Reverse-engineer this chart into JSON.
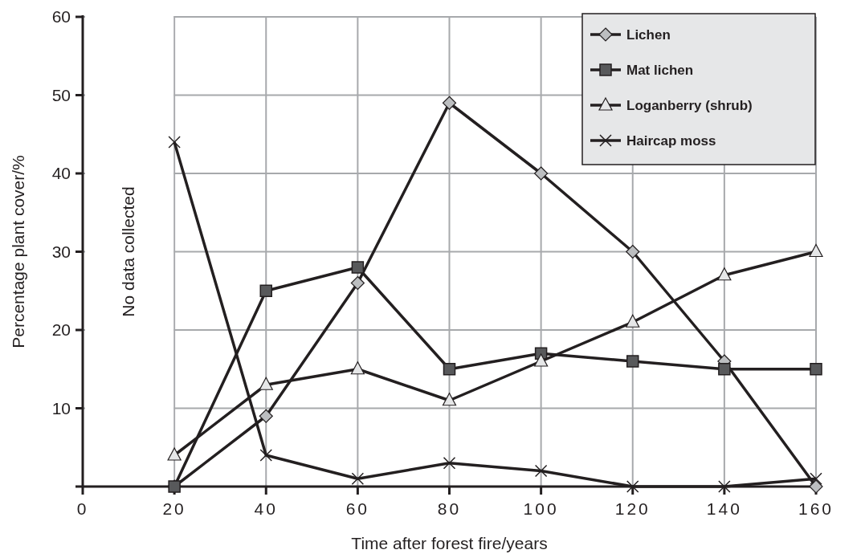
{
  "chart_data": {
    "type": "line",
    "xlabel": "Time after forest fire/years",
    "ylabel": "Percentage plant cover/%",
    "x": [
      20,
      40,
      60,
      80,
      100,
      120,
      140,
      160
    ],
    "series": [
      {
        "name": "Lichen",
        "color": "#bcbec0",
        "marker": "diamond",
        "values": [
          0,
          9,
          26,
          49,
          40,
          30,
          16,
          0
        ]
      },
      {
        "name": "Mat lichen",
        "color": "#58595b",
        "marker": "square",
        "values": [
          0,
          25,
          28,
          15,
          17,
          16,
          15,
          15
        ]
      },
      {
        "name": "Loganberry (shrub)",
        "color": "#e6e7e8",
        "marker": "triangle",
        "values": [
          4,
          13,
          15,
          11,
          16,
          21,
          27,
          30
        ]
      },
      {
        "name": "Haircap moss",
        "color": "#231f20",
        "marker": "cross",
        "values": [
          44,
          4,
          1,
          3,
          2,
          0,
          0,
          1
        ]
      }
    ],
    "xlim": [
      0,
      160
    ],
    "xticks": [
      0,
      20,
      40,
      60,
      80,
      100,
      120,
      140,
      160
    ],
    "ylim": [
      0,
      60
    ],
    "yticks": [
      {
        "value": 0,
        "label": null
      },
      10,
      20,
      30,
      40,
      50,
      60
    ],
    "bands": [
      {
        "axis": "x",
        "from": 0,
        "to": 20,
        "label": "No data collected",
        "color": "#ffffff"
      }
    ],
    "grid": true,
    "legend": "top right",
    "line_style": "solid"
  }
}
